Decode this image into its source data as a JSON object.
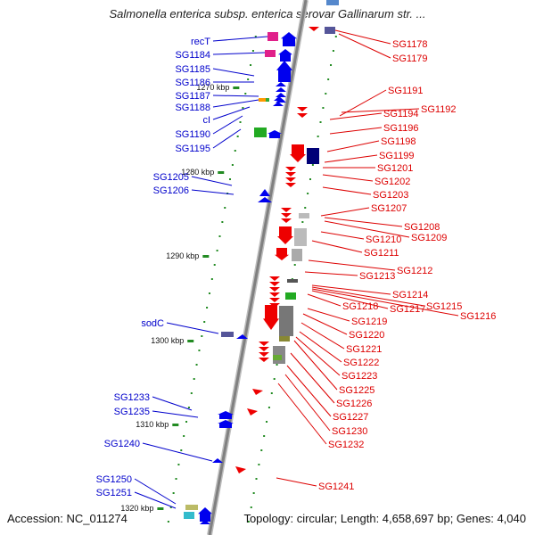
{
  "title": "Salmonella enterica subsp. enterica serovar Gallinarum str. ...",
  "accession": "Accession: NC_011274",
  "genome_info": "Topology: circular; Length: 4,658,697 bp; Genes: 4,040",
  "colors": {
    "axis": "#808080",
    "forward_gene": "#0000ee",
    "reverse_gene": "#ee0000",
    "tick": "#228b22",
    "left_label": "#0000cc",
    "right_label": "#dd0000"
  },
  "kbp_ticks": [
    "1270 kbp",
    "1280 kbp",
    "1290 kbp",
    "1300 kbp",
    "1310 kbp",
    "1320 kbp"
  ],
  "left_labels": [
    "recT",
    "SG1184",
    "SG1185",
    "SG1186",
    "SG1187",
    "SG1188",
    "cI",
    "SG1190",
    "SG1195",
    "SG1205",
    "SG1206",
    "sodC",
    "SG1233",
    "SG1235",
    "SG1240",
    "SG1250",
    "SG1251"
  ],
  "right_labels": [
    "SG1178",
    "SG1179",
    "SG1191",
    "SG1192",
    "SG1194",
    "SG1196",
    "SG1198",
    "SG1199",
    "SG1201",
    "SG1202",
    "SG1203",
    "SG1207",
    "SG1208",
    "SG1209",
    "SG1210",
    "SG1211",
    "SG1212",
    "SG1213",
    "SG1214",
    "SG1215",
    "SG1216",
    "SG1217",
    "SG1218",
    "SG1219",
    "SG1220",
    "SG1221",
    "SG1222",
    "SG1223",
    "SG1225",
    "SG1226",
    "SG1227",
    "SG1230",
    "SG1232",
    "SG1241"
  ]
}
